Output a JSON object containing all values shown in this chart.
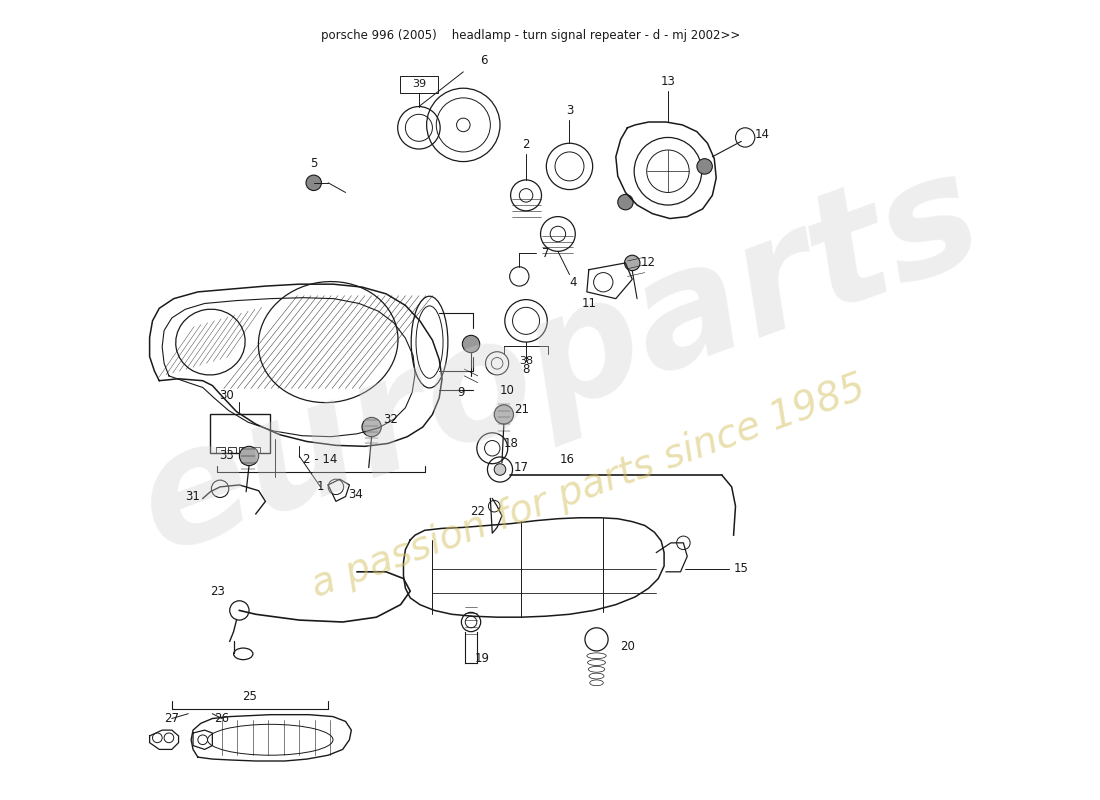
{
  "title": "porsche 996 (2005)    headlamp - turn signal repeater - d - mj 2002>>",
  "bg": "#ffffff",
  "line_color": "#1a1a1a",
  "wm1": "europarts",
  "wm2": "a passion for parts since 1985",
  "figsize": [
    11.0,
    8.0
  ],
  "dpi": 100
}
